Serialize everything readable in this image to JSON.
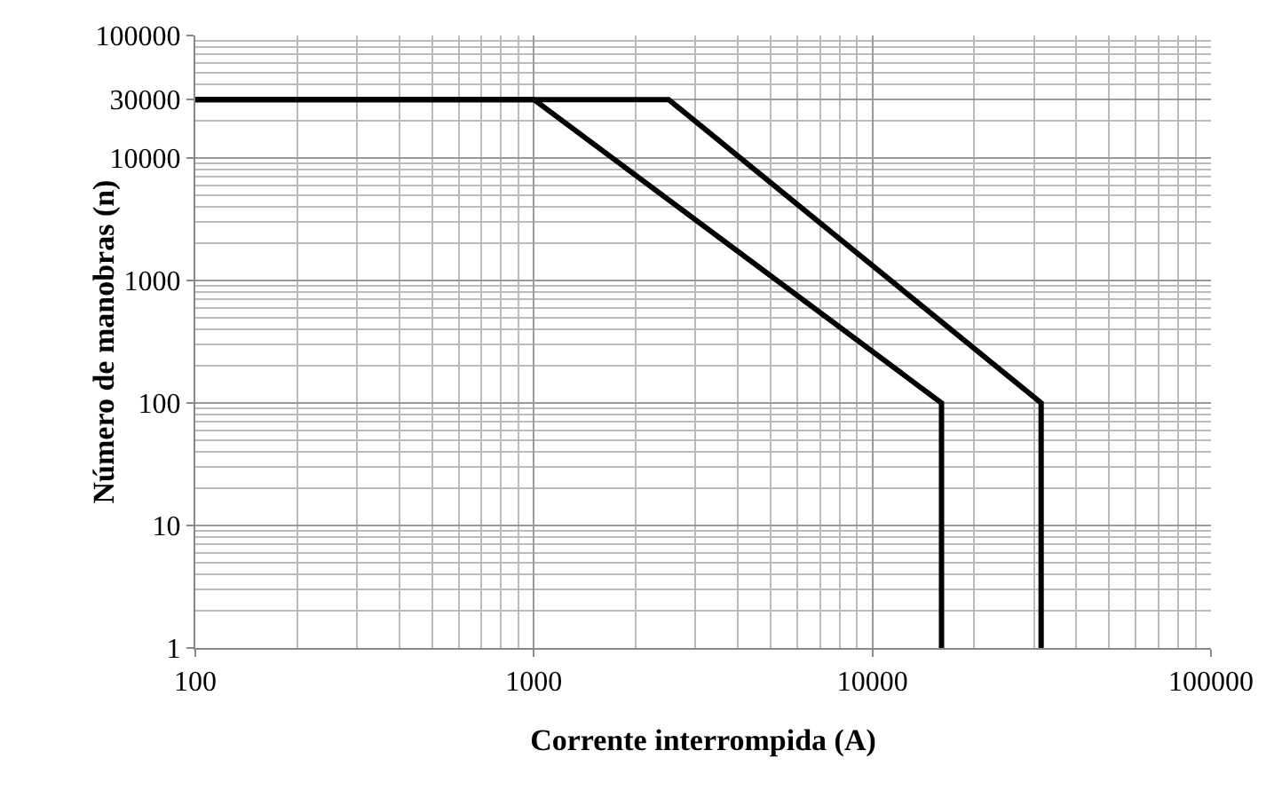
{
  "chart_data": {
    "type": "line",
    "xlabel": "Corrente interrompida (A)",
    "ylabel": "Número de manobras (n)",
    "log": "xy",
    "grid": true,
    "marker": "none",
    "line_style": "solid",
    "xlim": [
      100,
      100000
    ],
    "xticks": [
      100,
      1000,
      10000,
      100000
    ],
    "ylim": [
      1,
      100000
    ],
    "yticks": [
      1,
      10,
      100,
      1000,
      10000,
      30000,
      100000
    ],
    "series": [
      {
        "color": "#000000",
        "x": [
          100,
          1000,
          16000,
          16000
        ],
        "values": [
          30000,
          30000,
          100,
          1
        ]
      },
      {
        "color": "#000000",
        "x": [
          100,
          2500,
          31500,
          31500
        ],
        "values": [
          30000,
          30000,
          100,
          1
        ]
      }
    ]
  }
}
